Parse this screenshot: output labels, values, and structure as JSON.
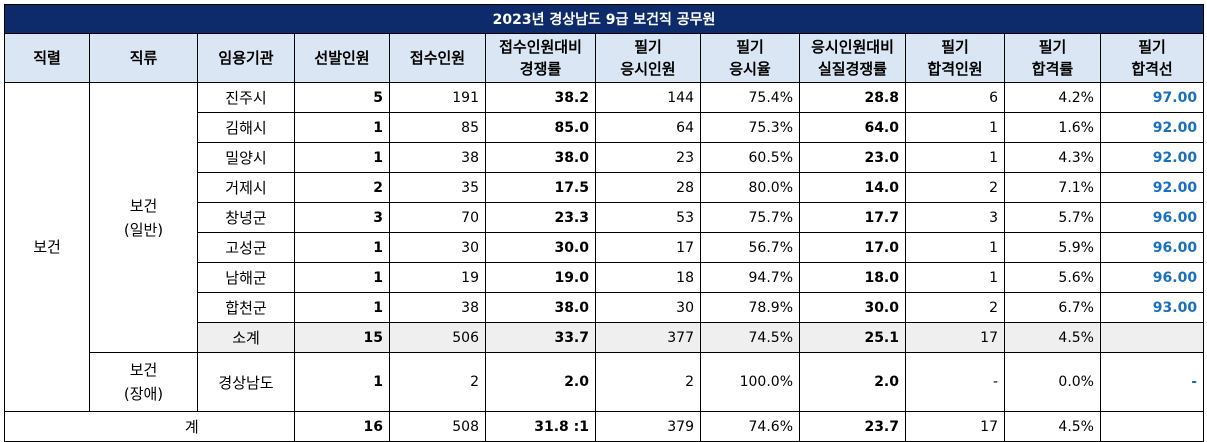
{
  "title": "2023년 경상남도 9급 보건직 공무원",
  "headers": {
    "rank": "직렬",
    "kind": "직류",
    "agency": "임용기관",
    "selected": "선발인원",
    "applied": "접수인원",
    "ratio1": "접수인원대비",
    "ratio2": "경쟁률",
    "exam_applicants1": "필기",
    "exam_applicants2": "응시인원",
    "exam_rate1": "필기",
    "exam_rate2": "응시율",
    "real_ratio1": "응시인원대비",
    "real_ratio2": "실질경쟁률",
    "passed1": "필기",
    "passed2": "합격인원",
    "pass_rate1": "필기",
    "pass_rate2": "합격률",
    "cutoff1": "필기",
    "cutoff2": "합격선"
  },
  "rank_label": "보건",
  "general": {
    "kind1": "보건",
    "kind2": "(일반)",
    "rows": [
      {
        "agency": "진주시",
        "selected": "5",
        "applied": "191",
        "ratio": "38.2",
        "exam": "144",
        "exam_rate": "75.4%",
        "real_ratio": "28.8",
        "passed": "6",
        "pass_rate": "4.2%",
        "cutoff": "97.00"
      },
      {
        "agency": "김해시",
        "selected": "1",
        "applied": "85",
        "ratio": "85.0",
        "exam": "64",
        "exam_rate": "75.3%",
        "real_ratio": "64.0",
        "passed": "1",
        "pass_rate": "1.6%",
        "cutoff": "92.00"
      },
      {
        "agency": "밀양시",
        "selected": "1",
        "applied": "38",
        "ratio": "38.0",
        "exam": "23",
        "exam_rate": "60.5%",
        "real_ratio": "23.0",
        "passed": "1",
        "pass_rate": "4.3%",
        "cutoff": "92.00"
      },
      {
        "agency": "거제시",
        "selected": "2",
        "applied": "35",
        "ratio": "17.5",
        "exam": "28",
        "exam_rate": "80.0%",
        "real_ratio": "14.0",
        "passed": "2",
        "pass_rate": "7.1%",
        "cutoff": "92.00"
      },
      {
        "agency": "창녕군",
        "selected": "3",
        "applied": "70",
        "ratio": "23.3",
        "exam": "53",
        "exam_rate": "75.7%",
        "real_ratio": "17.7",
        "passed": "3",
        "pass_rate": "5.7%",
        "cutoff": "96.00"
      },
      {
        "agency": "고성군",
        "selected": "1",
        "applied": "30",
        "ratio": "30.0",
        "exam": "17",
        "exam_rate": "56.7%",
        "real_ratio": "17.0",
        "passed": "1",
        "pass_rate": "5.9%",
        "cutoff": "96.00"
      },
      {
        "agency": "남해군",
        "selected": "1",
        "applied": "19",
        "ratio": "19.0",
        "exam": "18",
        "exam_rate": "94.7%",
        "real_ratio": "18.0",
        "passed": "1",
        "pass_rate": "5.6%",
        "cutoff": "96.00"
      },
      {
        "agency": "합천군",
        "selected": "1",
        "applied": "38",
        "ratio": "38.0",
        "exam": "30",
        "exam_rate": "78.9%",
        "real_ratio": "30.0",
        "passed": "2",
        "pass_rate": "6.7%",
        "cutoff": "93.00"
      }
    ],
    "subtotal": {
      "agency": "소계",
      "selected": "15",
      "applied": "506",
      "ratio": "33.7",
      "exam": "377",
      "exam_rate": "74.5%",
      "real_ratio": "25.1",
      "passed": "17",
      "pass_rate": "4.5%",
      "cutoff": ""
    }
  },
  "disabled": {
    "kind1": "보건",
    "kind2": "(장애)",
    "row": {
      "agency": "경상남도",
      "selected": "1",
      "applied": "2",
      "ratio": "2.0",
      "exam": "2",
      "exam_rate": "100.0%",
      "real_ratio": "2.0",
      "passed": "-",
      "pass_rate": "0.0%",
      "cutoff": "-"
    }
  },
  "total": {
    "label": "계",
    "selected": "16",
    "applied": "508",
    "ratio": "31.8 :1",
    "exam": "379",
    "exam_rate": "74.6%",
    "real_ratio": "23.7",
    "passed": "17",
    "pass_rate": "4.5%",
    "cutoff": ""
  }
}
